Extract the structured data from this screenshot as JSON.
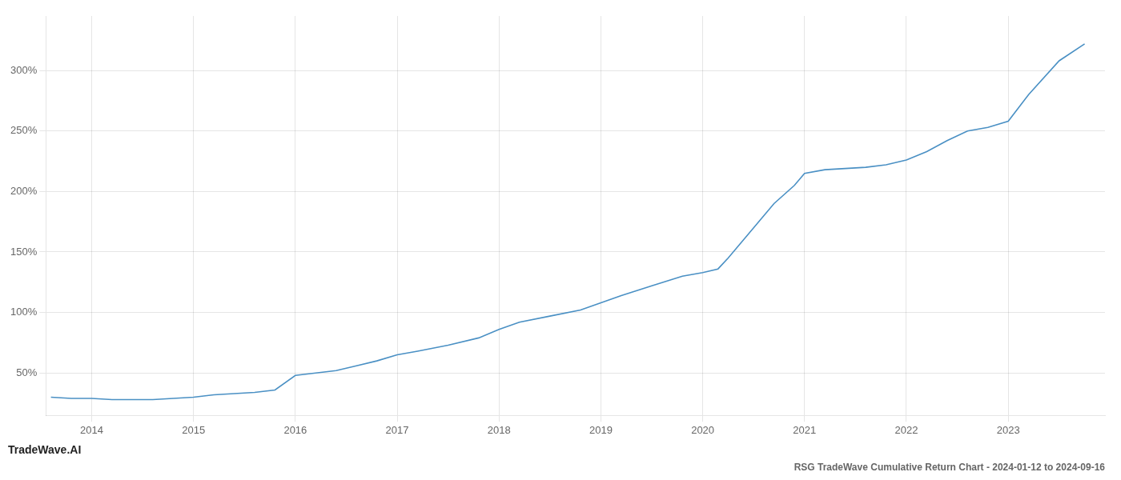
{
  "chart_data": {
    "type": "line",
    "title": "RSG TradeWave Cumulative Return Chart - 2024-01-12 to 2024-09-16",
    "annotations": [
      "TradeWave.AI"
    ],
    "color": "#4a90c4",
    "grid": true,
    "x": [
      2013.6,
      2013.8,
      2014.0,
      2014.2,
      2014.4,
      2014.6,
      2014.8,
      2015.0,
      2015.2,
      2015.4,
      2015.6,
      2015.8,
      2016.0,
      2016.2,
      2016.4,
      2016.6,
      2016.8,
      2017.0,
      2017.2,
      2017.5,
      2017.8,
      2018.0,
      2018.2,
      2018.5,
      2018.8,
      2019.0,
      2019.2,
      2019.5,
      2019.8,
      2020.0,
      2020.15,
      2020.25,
      2020.5,
      2020.7,
      2020.9,
      2021.0,
      2021.2,
      2021.4,
      2021.6,
      2021.8,
      2022.0,
      2022.2,
      2022.4,
      2022.6,
      2022.8,
      2023.0,
      2023.2,
      2023.5,
      2023.75
    ],
    "values": [
      30,
      29,
      29,
      28,
      28,
      28,
      29,
      30,
      32,
      33,
      34,
      36,
      48,
      50,
      52,
      56,
      60,
      65,
      68,
      73,
      79,
      86,
      92,
      97,
      102,
      108,
      114,
      122,
      130,
      133,
      136,
      145,
      170,
      190,
      205,
      215,
      218,
      219,
      220,
      222,
      226,
      233,
      242,
      250,
      253,
      258,
      280,
      308,
      322
    ],
    "xlim": [
      2013.55,
      2023.95
    ],
    "xticks": [
      2014,
      2015,
      2016,
      2017,
      2018,
      2019,
      2020,
      2021,
      2022,
      2023
    ],
    "ylim": [
      15,
      345
    ],
    "yticks": [
      {
        "value": 50,
        "label": "50%"
      },
      {
        "value": 100,
        "label": "100%"
      },
      {
        "value": 150,
        "label": "150%"
      },
      {
        "value": 200,
        "label": "200%"
      },
      {
        "value": 250,
        "label": "250%"
      },
      {
        "value": 300,
        "label": "300%"
      }
    ]
  }
}
